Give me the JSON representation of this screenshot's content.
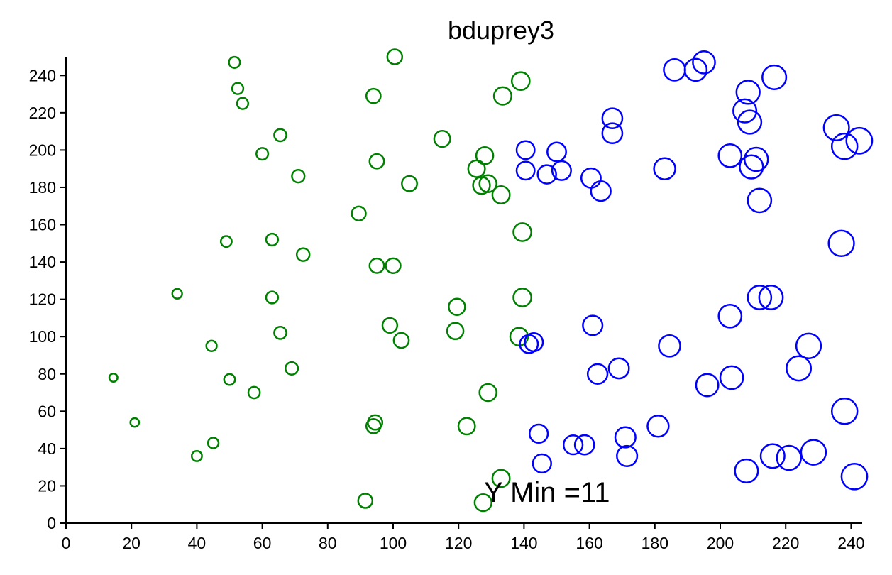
{
  "chart_data": {
    "type": "scatter",
    "title": "bduprey3",
    "xlabel": "",
    "ylabel": "",
    "xlim": [
      0,
      242
    ],
    "ylim": [
      0,
      250
    ],
    "x_ticks": [
      "0",
      "20",
      "40",
      "60",
      "80",
      "100",
      "120",
      "140",
      "160",
      "180",
      "200",
      "220",
      "240"
    ],
    "y_ticks": [
      "0",
      "20",
      "40",
      "60",
      "80",
      "100",
      "120",
      "140",
      "160",
      "180",
      "200",
      "220",
      "240"
    ],
    "annotation": "Y Min =11",
    "grid": false,
    "encoding": "marker size grows with x; points with x < 140 are green, x >= 140 are blue",
    "colors": {
      "low_x": "#008000",
      "high_x": "#0000ff"
    },
    "series": [
      {
        "color": "#008000",
        "points": [
          {
            "x": 14.5,
            "y": 78
          },
          {
            "x": 21,
            "y": 54
          },
          {
            "x": 34,
            "y": 123
          },
          {
            "x": 40,
            "y": 36
          },
          {
            "x": 44.5,
            "y": 95
          },
          {
            "x": 45,
            "y": 43
          },
          {
            "x": 49,
            "y": 151
          },
          {
            "x": 50,
            "y": 77
          },
          {
            "x": 51.5,
            "y": 247
          },
          {
            "x": 52.5,
            "y": 233
          },
          {
            "x": 54,
            "y": 225
          },
          {
            "x": 57.5,
            "y": 70
          },
          {
            "x": 60,
            "y": 198
          },
          {
            "x": 63,
            "y": 152
          },
          {
            "x": 63,
            "y": 121
          },
          {
            "x": 65.5,
            "y": 102
          },
          {
            "x": 65.5,
            "y": 208
          },
          {
            "x": 69,
            "y": 83
          },
          {
            "x": 71,
            "y": 186
          },
          {
            "x": 72.5,
            "y": 144
          },
          {
            "x": 89.5,
            "y": 166
          },
          {
            "x": 91.5,
            "y": 12
          },
          {
            "x": 94,
            "y": 229
          },
          {
            "x": 94,
            "y": 52
          },
          {
            "x": 94.5,
            "y": 54
          },
          {
            "x": 95,
            "y": 138
          },
          {
            "x": 95,
            "y": 194
          },
          {
            "x": 99,
            "y": 106
          },
          {
            "x": 100,
            "y": 138
          },
          {
            "x": 100.5,
            "y": 250
          },
          {
            "x": 102.5,
            "y": 98
          },
          {
            "x": 105,
            "y": 182
          },
          {
            "x": 115,
            "y": 206
          },
          {
            "x": 119,
            "y": 103
          },
          {
            "x": 119.5,
            "y": 116
          },
          {
            "x": 122.5,
            "y": 52
          },
          {
            "x": 125.5,
            "y": 190
          },
          {
            "x": 127,
            "y": 181
          },
          {
            "x": 127.5,
            "y": 11
          },
          {
            "x": 128,
            "y": 197
          },
          {
            "x": 129,
            "y": 182
          },
          {
            "x": 129,
            "y": 70
          },
          {
            "x": 133,
            "y": 176
          },
          {
            "x": 133,
            "y": 24
          },
          {
            "x": 133.5,
            "y": 229
          },
          {
            "x": 138.5,
            "y": 100
          },
          {
            "x": 139,
            "y": 237
          },
          {
            "x": 139.5,
            "y": 121
          },
          {
            "x": 139.5,
            "y": 156
          }
        ]
      },
      {
        "color": "#0000ff",
        "points": [
          {
            "x": 140.5,
            "y": 189
          },
          {
            "x": 140.5,
            "y": 200
          },
          {
            "x": 141.5,
            "y": 96
          },
          {
            "x": 143,
            "y": 97
          },
          {
            "x": 144.5,
            "y": 48
          },
          {
            "x": 145.5,
            "y": 32
          },
          {
            "x": 147,
            "y": 187
          },
          {
            "x": 150,
            "y": 199
          },
          {
            "x": 151.5,
            "y": 189
          },
          {
            "x": 155,
            "y": 42
          },
          {
            "x": 158.5,
            "y": 42
          },
          {
            "x": 160.5,
            "y": 185
          },
          {
            "x": 161,
            "y": 106
          },
          {
            "x": 162.5,
            "y": 80
          },
          {
            "x": 163.5,
            "y": 178
          },
          {
            "x": 167,
            "y": 217
          },
          {
            "x": 167,
            "y": 209
          },
          {
            "x": 169,
            "y": 83
          },
          {
            "x": 171,
            "y": 46
          },
          {
            "x": 171.5,
            "y": 36
          },
          {
            "x": 181,
            "y": 52
          },
          {
            "x": 183,
            "y": 190
          },
          {
            "x": 184.5,
            "y": 95
          },
          {
            "x": 186,
            "y": 243
          },
          {
            "x": 192.5,
            "y": 243
          },
          {
            "x": 195,
            "y": 247
          },
          {
            "x": 196,
            "y": 74
          },
          {
            "x": 203,
            "y": 197
          },
          {
            "x": 203,
            "y": 111
          },
          {
            "x": 203.5,
            "y": 78
          },
          {
            "x": 207.5,
            "y": 221
          },
          {
            "x": 208,
            "y": 28
          },
          {
            "x": 208.5,
            "y": 231
          },
          {
            "x": 209,
            "y": 215
          },
          {
            "x": 209.5,
            "y": 191
          },
          {
            "x": 211,
            "y": 195
          },
          {
            "x": 212,
            "y": 121
          },
          {
            "x": 212,
            "y": 173
          },
          {
            "x": 215.5,
            "y": 121
          },
          {
            "x": 216,
            "y": 36
          },
          {
            "x": 216.5,
            "y": 239
          },
          {
            "x": 221,
            "y": 35
          },
          {
            "x": 224,
            "y": 83
          },
          {
            "x": 227,
            "y": 95
          },
          {
            "x": 228.5,
            "y": 38
          },
          {
            "x": 235.5,
            "y": 212
          },
          {
            "x": 237,
            "y": 150
          },
          {
            "x": 238,
            "y": 202
          },
          {
            "x": 238,
            "y": 60
          },
          {
            "x": 241,
            "y": 25
          },
          {
            "x": 242.5,
            "y": 205
          }
        ]
      }
    ]
  }
}
